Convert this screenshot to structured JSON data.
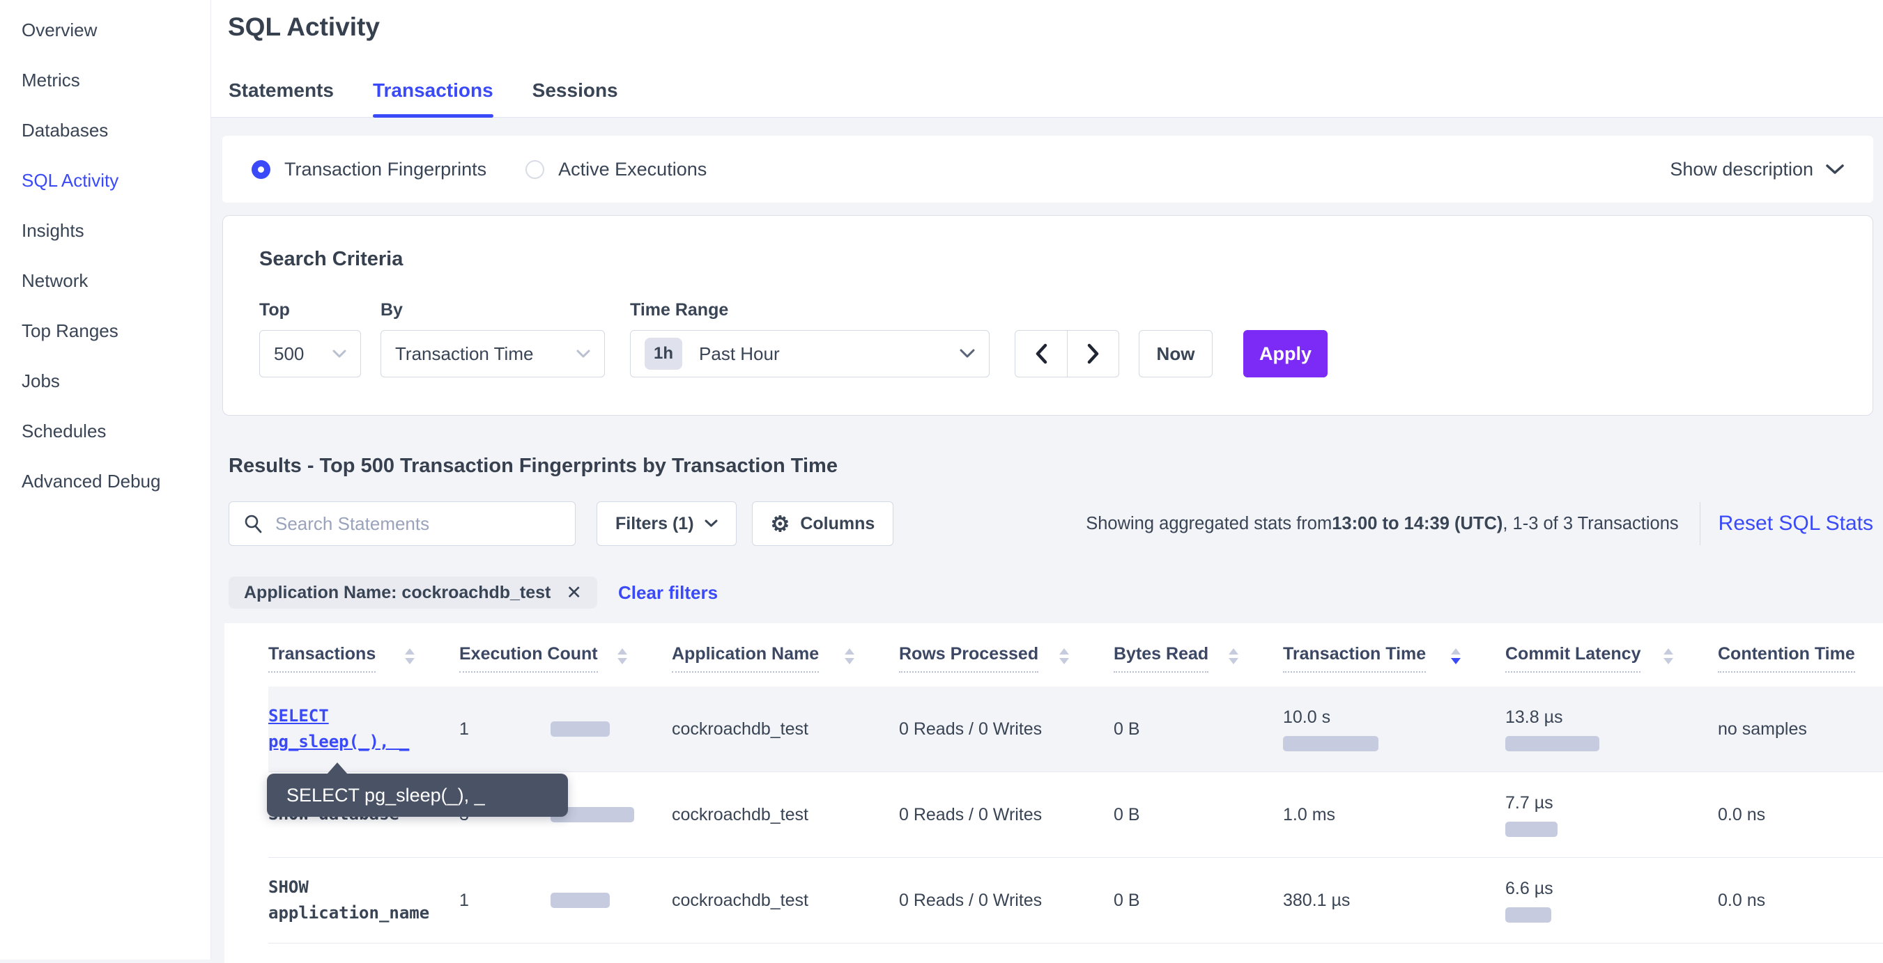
{
  "colors": {
    "accent_blue": "#3b4af8",
    "apply_purple": "#7c2af5",
    "bar_fill": "#c6cbdf",
    "tooltip_bg": "#4a5365",
    "page_bg": "#f3f4f8"
  },
  "sidebar": {
    "items": [
      {
        "label": "Overview",
        "active": false
      },
      {
        "label": "Metrics",
        "active": false
      },
      {
        "label": "Databases",
        "active": false
      },
      {
        "label": "SQL Activity",
        "active": true
      },
      {
        "label": "Insights",
        "active": false
      },
      {
        "label": "Network",
        "active": false
      },
      {
        "label": "Top Ranges",
        "active": false
      },
      {
        "label": "Jobs",
        "active": false
      },
      {
        "label": "Schedules",
        "active": false
      },
      {
        "label": "Advanced Debug",
        "active": false
      }
    ]
  },
  "header": {
    "title": "SQL Activity",
    "tabs": [
      {
        "label": "Statements",
        "active": false
      },
      {
        "label": "Transactions",
        "active": true
      },
      {
        "label": "Sessions",
        "active": false
      }
    ]
  },
  "view_toggle": {
    "options": [
      {
        "label": "Transaction Fingerprints",
        "selected": true
      },
      {
        "label": "Active Executions",
        "selected": false
      }
    ],
    "show_description_label": "Show description"
  },
  "search_criteria": {
    "title": "Search Criteria",
    "top": {
      "label": "Top",
      "value": "500"
    },
    "by": {
      "label": "By",
      "value": "Transaction Time"
    },
    "time_range": {
      "label": "Time Range",
      "badge": "1h",
      "value": "Past Hour"
    },
    "now_label": "Now",
    "apply_label": "Apply"
  },
  "results": {
    "heading": "Results - Top 500 Transaction Fingerprints by Transaction Time",
    "search_placeholder": "Search Statements",
    "filters_label": "Filters (1)",
    "columns_label": "Columns",
    "stats_prefix": "Showing aggregated stats from ",
    "stats_bold": "13:00 to 14:39 (UTC)",
    "stats_suffix": ", 1-3 of 3 Transactions",
    "reset_label": "Reset SQL Stats",
    "filter_chip": "Application Name: cockroachdb_test",
    "clear_filters_label": "Clear filters"
  },
  "table": {
    "tooltip": "SELECT pg_sleep(_), _",
    "columns": [
      {
        "label": "Transactions",
        "sort": "none"
      },
      {
        "label": "Execution Count",
        "sort": "none"
      },
      {
        "label": "Application Name",
        "sort": "none"
      },
      {
        "label": "Rows Processed",
        "sort": "none"
      },
      {
        "label": "Bytes Read",
        "sort": "none"
      },
      {
        "label": "Transaction Time",
        "sort": "desc"
      },
      {
        "label": "Commit Latency",
        "sort": "none"
      },
      {
        "label": "Contention Time",
        "sort": "none"
      }
    ],
    "rows": [
      {
        "sql": [
          "SELECT",
          "pg_sleep(_), _"
        ],
        "execution_count": "1",
        "exec_bar": 85,
        "application_name": "cockroachdb_test",
        "rows_processed": "0 Reads / 0 Writes",
        "bytes_read": "0 B",
        "transaction_time": "10.0 s",
        "transaction_time_bar": 137,
        "commit_latency": "13.8 µs",
        "commit_latency_bar": 135,
        "contention_time": "no samples"
      },
      {
        "sql": [
          "SHOW database"
        ],
        "execution_count": "3",
        "exec_bar": 120,
        "application_name": "cockroachdb_test",
        "rows_processed": "0 Reads / 0 Writes",
        "bytes_read": "0 B",
        "transaction_time": "1.0 ms",
        "commit_latency": "7.7 µs",
        "commit_latency_bar": 75,
        "contention_time": "0.0 ns"
      },
      {
        "sql": [
          "SHOW",
          "application_name"
        ],
        "execution_count": "1",
        "exec_bar": 85,
        "application_name": "cockroachdb_test",
        "rows_processed": "0 Reads / 0 Writes",
        "bytes_read": "0 B",
        "transaction_time": "380.1 µs",
        "commit_latency": "6.6 µs",
        "commit_latency_bar": 66,
        "contention_time": "0.0 ns"
      }
    ]
  }
}
